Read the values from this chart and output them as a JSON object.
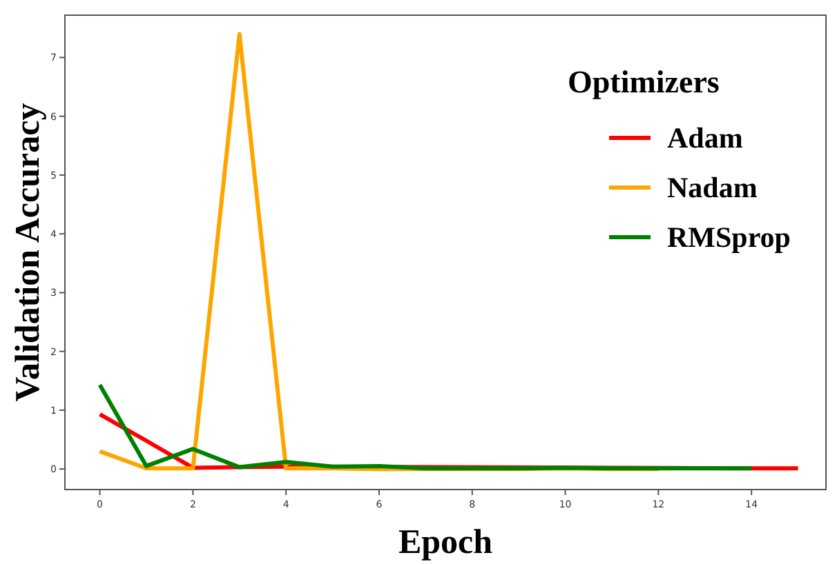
{
  "chart_data": {
    "type": "line",
    "xlabel": "Epoch",
    "ylabel": "Validation Accuracy",
    "legend_title": "Optimizers",
    "legend": "top right",
    "grid": false,
    "xlim": [
      -0.75,
      15.6
    ],
    "xticks": [
      0,
      2,
      4,
      6,
      8,
      10,
      12,
      14
    ],
    "ylim": [
      -0.35,
      7.72
    ],
    "yticks": [
      0,
      1,
      2,
      3,
      4,
      5,
      6,
      7
    ],
    "series": [
      {
        "name": "Adam",
        "color": "#ff0000",
        "x": [
          0,
          1,
          2,
          3,
          4,
          14,
          15
        ],
        "values": [
          0.93,
          0.48,
          0.02,
          0.03,
          0.04,
          0.01,
          0.01
        ]
      },
      {
        "name": "Nadam",
        "color": "#ffa500",
        "x": [
          0,
          1,
          2,
          3,
          4,
          5,
          6,
          7,
          8,
          9,
          10,
          11,
          12
        ],
        "values": [
          0.3,
          0.01,
          0.01,
          7.4,
          0.01,
          0.01,
          0.0,
          0.0,
          0.0,
          0.0,
          0.01,
          0.0,
          0.0
        ]
      },
      {
        "name": "RMSprop",
        "color": "#008000",
        "x": [
          0,
          1,
          2,
          3,
          4,
          5,
          6,
          7,
          8,
          9,
          10,
          11,
          12,
          13,
          14
        ],
        "values": [
          1.43,
          0.05,
          0.34,
          0.03,
          0.12,
          0.04,
          0.05,
          0.01,
          0.01,
          0.01,
          0.02,
          0.01,
          0.01,
          0.01,
          0.01
        ]
      }
    ]
  }
}
